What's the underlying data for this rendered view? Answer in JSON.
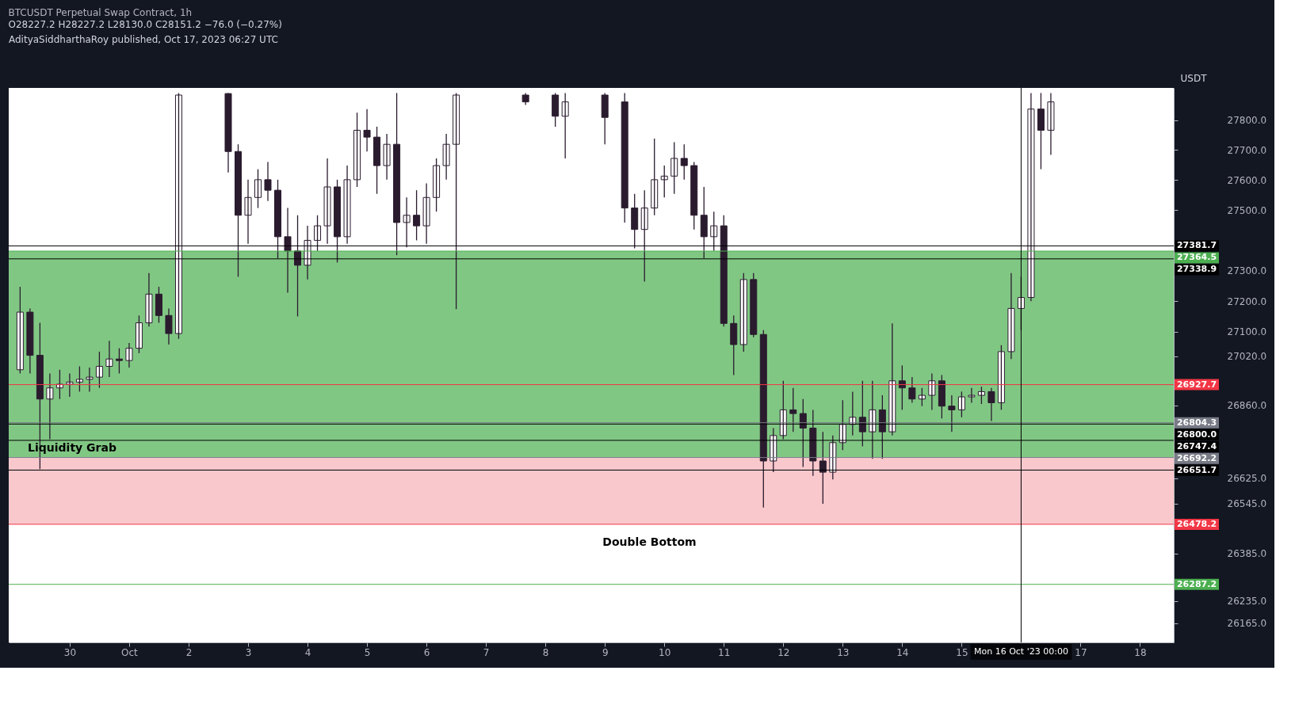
{
  "chart_data": {
    "type": "candlestick",
    "title": "BTCUSDT Perpetual Swap Contract, 1h",
    "subtitle": "O28227.2 H28227.2 L28130.0 C28151.2 −76.0 (−0.27%)",
    "ylabel": "USDT",
    "color": "#2a1b2e",
    "log": true,
    "x": [
      "2023-09-29T04:00",
      "2023-09-29T08:00",
      "2023-09-29T12:00",
      "2023-09-29T16:00",
      "2023-09-29T20:00",
      "2023-09-30T00:00",
      "2023-09-30T04:00",
      "2023-09-30T08:00",
      "2023-09-30T12:00",
      "2023-09-30T16:00",
      "2023-09-30T20:00",
      "2023-10-01T00:00",
      "2023-10-01T04:00",
      "2023-10-01T08:00",
      "2023-10-01T12:00",
      "2023-10-01T16:00",
      "2023-10-01T20:00",
      "2023-10-02T16:00",
      "2023-10-02T20:00",
      "2023-10-03T00:00",
      "2023-10-03T04:00",
      "2023-10-03T08:00",
      "2023-10-03T12:00",
      "2023-10-03T16:00",
      "2023-10-03T20:00",
      "2023-10-04T00:00",
      "2023-10-04T04:00",
      "2023-10-04T08:00",
      "2023-10-04T12:00",
      "2023-10-04T16:00",
      "2023-10-04T20:00",
      "2023-10-05T00:00",
      "2023-10-05T04:00",
      "2023-10-05T08:00",
      "2023-10-05T12:00",
      "2023-10-05T16:00",
      "2023-10-05T20:00",
      "2023-10-06T00:00",
      "2023-10-06T04:00",
      "2023-10-06T08:00",
      "2023-10-06T12:00",
      "2023-10-07T16:00",
      "2023-10-08T04:00",
      "2023-10-08T08:00",
      "2023-10-09T00:00",
      "2023-10-09T08:00",
      "2023-10-09T12:00",
      "2023-10-09T16:00",
      "2023-10-09T20:00",
      "2023-10-10T00:00",
      "2023-10-10T04:00",
      "2023-10-10T08:00",
      "2023-10-10T12:00",
      "2023-10-10T16:00",
      "2023-10-10T20:00",
      "2023-10-11T00:00",
      "2023-10-11T04:00",
      "2023-10-11T08:00",
      "2023-10-11T12:00",
      "2023-10-11T16:00",
      "2023-10-11T20:00",
      "2023-10-12T00:00",
      "2023-10-12T04:00",
      "2023-10-12T08:00",
      "2023-10-12T12:00",
      "2023-10-12T16:00",
      "2023-10-12T20:00",
      "2023-10-13T00:00",
      "2023-10-13T04:00",
      "2023-10-13T08:00",
      "2023-10-13T12:00",
      "2023-10-13T16:00",
      "2023-10-13T20:00",
      "2023-10-14T00:00",
      "2023-10-14T04:00",
      "2023-10-14T08:00",
      "2023-10-14T12:00",
      "2023-10-14T16:00",
      "2023-10-14T20:00",
      "2023-10-15T00:00",
      "2023-10-15T04:00",
      "2023-10-15T08:00",
      "2023-10-15T12:00",
      "2023-10-15T16:00",
      "2023-10-15T20:00",
      "2023-10-16T00:00",
      "2023-10-16T04:00",
      "2023-10-16T08:00",
      "2023-10-16T12:00"
    ],
    "ohlc": [
      [
        26976,
        27247,
        26964,
        27164
      ],
      [
        27164,
        27176,
        26964,
        27023
      ],
      [
        27023,
        27129,
        26655,
        26881
      ],
      [
        26881,
        26964,
        26751,
        26917
      ],
      [
        26917,
        26976,
        26881,
        26929
      ],
      [
        26929,
        26964,
        26888,
        26936
      ],
      [
        26936,
        26987,
        26905,
        26945
      ],
      [
        26945,
        26983,
        26905,
        26952
      ],
      [
        26952,
        27035,
        26917,
        26987
      ],
      [
        26987,
        27070,
        26952,
        27011
      ],
      [
        27011,
        27046,
        26964,
        27006
      ],
      [
        27006,
        27063,
        26983,
        27046
      ],
      [
        27046,
        27153,
        27030,
        27129
      ],
      [
        27129,
        27292,
        27117,
        27223
      ],
      [
        27223,
        27247,
        27129,
        27153
      ],
      [
        27153,
        27176,
        27058,
        27094
      ],
      [
        27094,
        27891,
        27077,
        27884
      ],
      [
        27889,
        27891,
        27625,
        27695
      ],
      [
        27695,
        27719,
        27280,
        27483
      ],
      [
        27483,
        27601,
        27389,
        27542
      ],
      [
        27542,
        27636,
        27507,
        27601
      ],
      [
        27601,
        27660,
        27530,
        27566
      ],
      [
        27566,
        27601,
        27341,
        27412
      ],
      [
        27412,
        27507,
        27228,
        27365
      ],
      [
        27365,
        27483,
        27150,
        27318
      ],
      [
        27318,
        27448,
        27271,
        27400
      ],
      [
        27400,
        27483,
        27365,
        27448
      ],
      [
        27448,
        27672,
        27389,
        27577
      ],
      [
        27577,
        27601,
        27327,
        27412
      ],
      [
        27412,
        27648,
        27389,
        27601
      ],
      [
        27601,
        27825,
        27577,
        27766
      ],
      [
        27766,
        27837,
        27695,
        27743
      ],
      [
        27743,
        27778,
        27554,
        27648
      ],
      [
        27648,
        27754,
        27601,
        27719
      ],
      [
        27719,
        27891,
        27351,
        27459
      ],
      [
        27459,
        27542,
        27377,
        27483
      ],
      [
        27483,
        27566,
        27400,
        27448
      ],
      [
        27448,
        27589,
        27389,
        27542
      ],
      [
        27542,
        27672,
        27495,
        27648
      ],
      [
        27648,
        27754,
        27601,
        27719
      ],
      [
        27719,
        27891,
        27174,
        27884
      ],
      [
        27884,
        27891,
        27851,
        27861
      ],
      [
        27884,
        27891,
        27778,
        27813
      ],
      [
        27813,
        27891,
        27672,
        27861
      ],
      [
        27884,
        27891,
        27719,
        27809
      ],
      [
        27861,
        27891,
        27459,
        27507
      ],
      [
        27507,
        27554,
        27374,
        27436
      ],
      [
        27436,
        27566,
        27264,
        27507
      ],
      [
        27507,
        27738,
        27483,
        27601
      ],
      [
        27601,
        27648,
        27542,
        27613
      ],
      [
        27613,
        27726,
        27554,
        27672
      ],
      [
        27672,
        27719,
        27601,
        27648
      ],
      [
        27648,
        27660,
        27436,
        27483
      ],
      [
        27483,
        27577,
        27341,
        27412
      ],
      [
        27412,
        27495,
        27365,
        27448
      ],
      [
        27448,
        27483,
        27117,
        27127
      ],
      [
        27127,
        27153,
        26959,
        27058
      ],
      [
        27058,
        27292,
        27035,
        27271
      ],
      [
        27271,
        27292,
        27082,
        27091
      ],
      [
        27091,
        27105,
        26532,
        26681
      ],
      [
        26681,
        26787,
        26645,
        26763
      ],
      [
        26763,
        26940,
        26751,
        26846
      ],
      [
        26846,
        26917,
        26775,
        26834
      ],
      [
        26834,
        26881,
        26662,
        26787
      ],
      [
        26787,
        26846,
        26633,
        26681
      ],
      [
        26681,
        26775,
        26544,
        26645
      ],
      [
        26645,
        26763,
        26622,
        26740
      ],
      [
        26740,
        26877,
        26716,
        26799
      ],
      [
        26799,
        26905,
        26763,
        26822
      ],
      [
        26822,
        26940,
        26728,
        26775
      ],
      [
        26775,
        26940,
        26688,
        26846
      ],
      [
        26846,
        26893,
        26688,
        26775
      ],
      [
        26775,
        27127,
        26763,
        26940
      ],
      [
        26940,
        26990,
        26846,
        26917
      ],
      [
        26917,
        26952,
        26869,
        26881
      ],
      [
        26881,
        26917,
        26858,
        26893
      ],
      [
        26893,
        26964,
        26846,
        26940
      ],
      [
        26940,
        26959,
        26818,
        26858
      ],
      [
        26858,
        26893,
        26775,
        26846
      ],
      [
        26846,
        26905,
        26822,
        26888
      ],
      [
        26888,
        26917,
        26869,
        26893
      ],
      [
        26893,
        26921,
        26865,
        26905
      ],
      [
        26905,
        26917,
        26810,
        26869
      ],
      [
        26869,
        27056,
        26846,
        27035
      ],
      [
        27035,
        27292,
        27011,
        27176
      ],
      [
        27176,
        27280,
        27105,
        27212
      ],
      [
        27212,
        27891,
        27200,
        27837
      ],
      [
        27837,
        27891,
        27636,
        27766
      ],
      [
        27766,
        27891,
        27684,
        27861
      ]
    ],
    "xlim": [
      "2023-09-29T01:00",
      "2023-10-18T12:00"
    ],
    "xticks": [
      {
        "value": "2023-09-30T00:00",
        "label": "30"
      },
      {
        "value": "2023-10-01T00:00",
        "label": "Oct"
      },
      {
        "value": "2023-10-02T00:00",
        "label": "2"
      },
      {
        "value": "2023-10-03T00:00",
        "label": "3"
      },
      {
        "value": "2023-10-04T00:00",
        "label": "4"
      },
      {
        "value": "2023-10-05T00:00",
        "label": "5"
      },
      {
        "value": "2023-10-06T00:00",
        "label": "6"
      },
      {
        "value": "2023-10-07T00:00",
        "label": "7"
      },
      {
        "value": "2023-10-08T00:00",
        "label": "8"
      },
      {
        "value": "2023-10-09T00:00",
        "label": "9"
      },
      {
        "value": "2023-10-10T00:00",
        "label": "10"
      },
      {
        "value": "2023-10-11T00:00",
        "label": "11"
      },
      {
        "value": "2023-10-12T00:00",
        "label": "12"
      },
      {
        "value": "2023-10-13T00:00",
        "label": "13"
      },
      {
        "value": "2023-10-14T00:00",
        "label": "14"
      },
      {
        "value": "2023-10-15T00:00",
        "label": "15"
      },
      {
        "value": "2023-10-17T00:00",
        "label": "17"
      },
      {
        "value": "2023-10-18T00:00",
        "label": "18"
      }
    ],
    "ylim": [
      26104,
      27908
    ],
    "yticks": [
      {
        "value": 27800,
        "label": "27800.0"
      },
      {
        "value": 27700,
        "label": "27700.0"
      },
      {
        "value": 27600,
        "label": "27600.0"
      },
      {
        "value": 27500,
        "label": "27500.0"
      },
      {
        "value": 27300,
        "label": "27300.0"
      },
      {
        "value": 27200,
        "label": "27200.0"
      },
      {
        "value": 27100,
        "label": "27100.0"
      },
      {
        "value": 27020,
        "label": "27020.0"
      },
      {
        "value": 26860,
        "label": "26860.0"
      },
      {
        "value": 26625,
        "label": "26625.0"
      },
      {
        "value": 26545,
        "label": "26545.0"
      },
      {
        "value": 26385,
        "label": "26385.0"
      },
      {
        "value": 26235,
        "label": "26235.0"
      },
      {
        "value": 26165,
        "label": "26165.0"
      }
    ],
    "grid": false,
    "bands": [
      {
        "axis": "y",
        "from": 26692.2,
        "to": 27364.5,
        "color": "#81c784"
      },
      {
        "axis": "y",
        "from": 26478.2,
        "to": 26692.2,
        "color": "#f9c8cc"
      }
    ],
    "ref_lines": [
      {
        "axis": "y",
        "value": 27381.7,
        "label": "27381.7",
        "color": "#000000"
      },
      {
        "axis": "y",
        "value": 27364.5,
        "label": "27364.5",
        "color": "#4caf50"
      },
      {
        "axis": "y",
        "value": 27338.9,
        "label": "27338.9",
        "color": "#000000"
      },
      {
        "axis": "y",
        "value": 26927.7,
        "label": "26927.7",
        "color": "#f23645"
      },
      {
        "axis": "y",
        "value": 26804.3,
        "label": "26804.3",
        "color": "#787b86"
      },
      {
        "axis": "y",
        "value": 26800.0,
        "label": "26800.0",
        "color": "#000000"
      },
      {
        "axis": "y",
        "value": 26747.4,
        "label": "26747.4",
        "color": "#000000"
      },
      {
        "axis": "y",
        "value": 26692.2,
        "label": "26692.2",
        "color": "#787b86"
      },
      {
        "axis": "y",
        "value": 26651.7,
        "label": "26651.7",
        "color": "#000000"
      },
      {
        "axis": "y",
        "value": 26478.2,
        "label": "26478.2",
        "color": "#f23645"
      },
      {
        "axis": "y",
        "value": 26287.2,
        "label": "26287.2",
        "color": "#4caf50"
      },
      {
        "axis": "x",
        "value": "2023-10-16T00:00",
        "label": "Mon 16 Oct '23  00:00",
        "color": "#000000"
      }
    ],
    "annotations": [
      "AdityaSiddharthaRoy published, Oct 17, 2023 06:27 UTC",
      {
        "text": "Liquidity Grab",
        "x": "2023-09-30T01:00",
        "y": 26690
      },
      "Double Bottom"
    ]
  }
}
